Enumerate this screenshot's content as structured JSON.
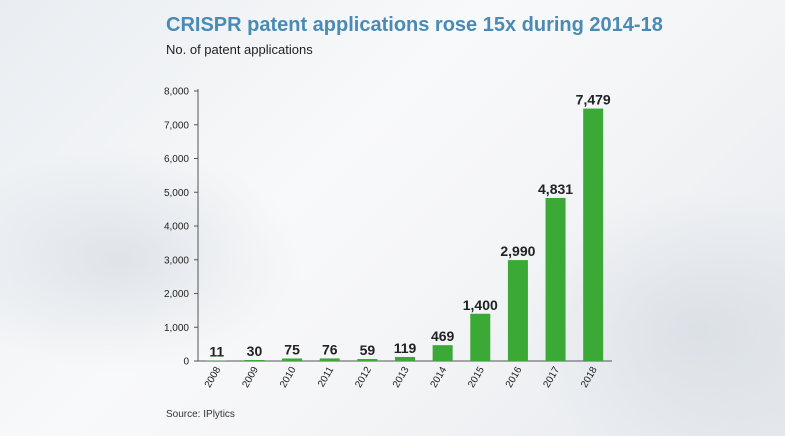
{
  "chart_data": {
    "type": "bar",
    "title": "CRISPR patent applications rose 15x during 2014-18",
    "subtitle": "No. of patent applications",
    "source": "Source: IPlytics",
    "categories": [
      "2008",
      "2009",
      "2010",
      "2011",
      "2012",
      "2013",
      "2014",
      "2015",
      "2016",
      "2017",
      "2018"
    ],
    "values": [
      11,
      30,
      75,
      76,
      59,
      119,
      469,
      1400,
      2990,
      4831,
      7479
    ],
    "value_labels": [
      "11",
      "30",
      "75",
      "76",
      "59",
      "119",
      "469",
      "1,400",
      "2,990",
      "4,831",
      "7,479"
    ],
    "yticks": [
      0,
      1000,
      2000,
      3000,
      4000,
      5000,
      6000,
      7000,
      8000
    ],
    "ytick_labels": [
      "0",
      "1,000",
      "2,000",
      "3,000",
      "4,000",
      "5,000",
      "6,000",
      "7,000",
      "8,000"
    ],
    "ylim": [
      0,
      8000
    ],
    "bar_color": "#3aa935",
    "grid": false
  }
}
